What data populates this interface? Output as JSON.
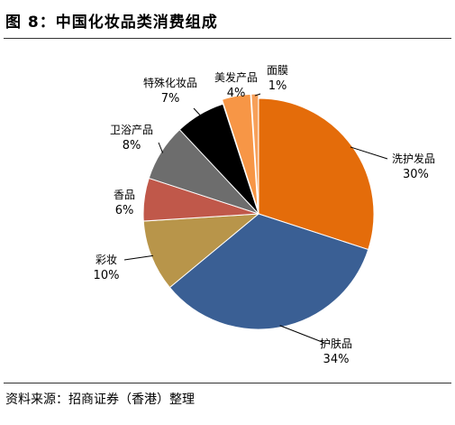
{
  "header": {
    "title": "图 8：中国化妆品类消费组成"
  },
  "footer": {
    "source": "资料来源：招商证券（香港）整理"
  },
  "chart_data": {
    "type": "pie",
    "title": "",
    "legend": "none",
    "slices": [
      {
        "label": "洗护发品",
        "value": 30,
        "display": "30%",
        "color": "#e46c0a"
      },
      {
        "label": "护肤品",
        "value": 34,
        "display": "34%",
        "color": "#3a5f94"
      },
      {
        "label": "彩妆",
        "value": 10,
        "display": "10%",
        "color": "#b8954a"
      },
      {
        "label": "香品",
        "value": 6,
        "display": "6%",
        "color": "#c0584a"
      },
      {
        "label": "卫浴产品",
        "value": 8,
        "display": "8%",
        "color": "#6d6d6d"
      },
      {
        "label": "特殊化妆品",
        "value": 7,
        "display": "7%",
        "color": "#000000"
      },
      {
        "label": "美发产品",
        "value": 4,
        "display": "4%",
        "color": "#f79646"
      },
      {
        "label": "面膜",
        "value": 1,
        "display": "1%",
        "color": "#f7a05a"
      }
    ]
  }
}
